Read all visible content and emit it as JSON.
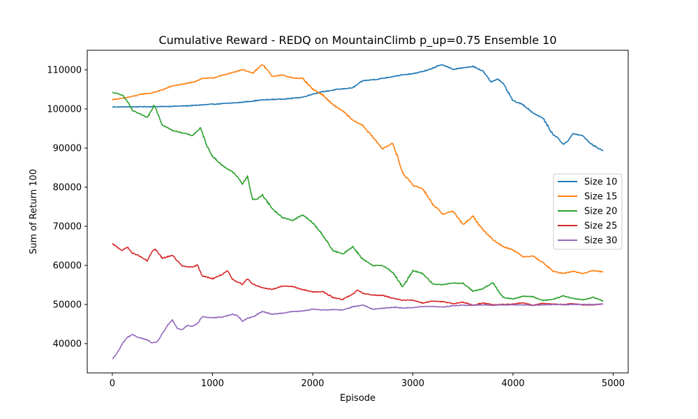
{
  "chart_data": {
    "type": "line",
    "title": "Cumulative Reward - REDQ on MountainClimb p_up=0.75 Ensemble 10",
    "xlabel": "Episode",
    "ylabel": "Sum of Return 100",
    "xlim": [
      -250,
      5150
    ],
    "ylim": [
      32500,
      115000
    ],
    "xticks": [
      0,
      1000,
      2000,
      3000,
      4000,
      5000
    ],
    "yticks": [
      40000,
      50000,
      60000,
      70000,
      80000,
      90000,
      100000,
      110000
    ],
    "legend_position": "center-right",
    "grid": false,
    "series": [
      {
        "name": "Size 10",
        "color": "#1f77b4",
        "x": [
          0,
          250,
          500,
          750,
          1000,
          1250,
          1500,
          1750,
          1900,
          2000,
          2100,
          2250,
          2400,
          2500,
          2650,
          2800,
          2900,
          3000,
          3150,
          3250,
          3300,
          3400,
          3500,
          3600,
          3700,
          3780,
          3850,
          3900,
          4000,
          4100,
          4200,
          4300,
          4400,
          4450,
          4500,
          4550,
          4600,
          4700,
          4750,
          4800,
          4900
        ],
        "values": [
          100500,
          100550,
          100600,
          100800,
          101200,
          101600,
          102300,
          102600,
          103000,
          103800,
          104400,
          105000,
          105400,
          107200,
          107600,
          108300,
          108700,
          109000,
          109900,
          111000,
          111300,
          110100,
          110500,
          110900,
          109700,
          106900,
          107700,
          106500,
          102100,
          101100,
          99000,
          97600,
          93400,
          92600,
          90900,
          91900,
          93700,
          93100,
          91700,
          90700,
          89300
        ]
      },
      {
        "name": "Size 15",
        "color": "#ff7f0e",
        "x": [
          0,
          100,
          200,
          300,
          400,
          500,
          600,
          700,
          800,
          900,
          1000,
          1100,
          1200,
          1300,
          1400,
          1500,
          1600,
          1700,
          1800,
          1900,
          2000,
          2100,
          2200,
          2300,
          2400,
          2500,
          2600,
          2700,
          2800,
          2900,
          3000,
          3100,
          3200,
          3300,
          3400,
          3500,
          3600,
          3700,
          3800,
          3900,
          4000,
          4100,
          4200,
          4300,
          4400,
          4500,
          4600,
          4700,
          4800,
          4900
        ],
        "values": [
          102400,
          102700,
          103200,
          103800,
          104100,
          104900,
          105900,
          106300,
          106800,
          107800,
          107900,
          108600,
          109300,
          110100,
          109100,
          111400,
          108300,
          108700,
          107900,
          107800,
          105100,
          103600,
          101100,
          99500,
          97100,
          95800,
          92800,
          89800,
          91300,
          83600,
          80500,
          79600,
          75600,
          73100,
          73900,
          70400,
          72500,
          69100,
          66600,
          64800,
          64000,
          62200,
          62400,
          60700,
          58500,
          57900,
          58500,
          57900,
          58700,
          58300
        ]
      },
      {
        "name": "Size 20",
        "color": "#2ca02c",
        "x": [
          0,
          100,
          150,
          200,
          250,
          300,
          350,
          420,
          500,
          600,
          700,
          800,
          880,
          950,
          1000,
          1100,
          1200,
          1250,
          1300,
          1350,
          1400,
          1450,
          1500,
          1600,
          1700,
          1800,
          1900,
          2000,
          2100,
          2200,
          2300,
          2400,
          2500,
          2600,
          2700,
          2800,
          2900,
          3000,
          3100,
          3200,
          3300,
          3400,
          3500,
          3600,
          3700,
          3800,
          3900,
          4000,
          4100,
          4200,
          4300,
          4400,
          4500,
          4600,
          4700,
          4800,
          4900
        ],
        "values": [
          104200,
          103600,
          101900,
          99600,
          99000,
          98400,
          97800,
          101100,
          95900,
          94500,
          93900,
          93200,
          95100,
          90300,
          87900,
          85500,
          83900,
          82600,
          80800,
          82800,
          76800,
          77000,
          78000,
          74400,
          72200,
          71500,
          72900,
          70900,
          67800,
          63800,
          62900,
          64800,
          61600,
          59900,
          60000,
          58200,
          54400,
          58700,
          57900,
          55200,
          55100,
          55500,
          55400,
          53400,
          54000,
          55600,
          51800,
          51400,
          52100,
          52000,
          51000,
          51300,
          52200,
          51500,
          51200,
          51800,
          50900
        ]
      },
      {
        "name": "Size 25",
        "color": "#d62728",
        "x": [
          0,
          100,
          150,
          200,
          250,
          300,
          350,
          400,
          430,
          500,
          600,
          650,
          700,
          800,
          850,
          900,
          1000,
          1100,
          1150,
          1200,
          1300,
          1350,
          1400,
          1500,
          1600,
          1700,
          1800,
          1900,
          2000,
          2100,
          2200,
          2300,
          2400,
          2450,
          2500,
          2600,
          2700,
          2800,
          2900,
          3000,
          3100,
          3200,
          3300,
          3400,
          3500,
          3600,
          3700,
          3800,
          3900,
          4000,
          4100,
          4200,
          4300,
          4400,
          4500,
          4600,
          4700,
          4800,
          4900
        ],
        "values": [
          65500,
          63800,
          64700,
          63100,
          62700,
          61900,
          61100,
          63700,
          64100,
          61800,
          62600,
          61100,
          59800,
          59500,
          60100,
          57300,
          56600,
          57700,
          58600,
          56400,
          55200,
          56600,
          55300,
          54200,
          53900,
          54700,
          54600,
          53800,
          53200,
          53300,
          51800,
          51300,
          52600,
          53700,
          52900,
          52400,
          52300,
          51600,
          51100,
          51100,
          50400,
          50900,
          50700,
          50200,
          50600,
          49800,
          50400,
          49900,
          50000,
          50100,
          50400,
          49800,
          50300,
          50100,
          50000,
          50200,
          49900,
          49900,
          50100
        ]
      },
      {
        "name": "Size 30",
        "color": "#9467bd",
        "x": [
          0,
          50,
          100,
          150,
          200,
          250,
          300,
          350,
          400,
          450,
          500,
          550,
          600,
          650,
          700,
          750,
          800,
          850,
          900,
          950,
          1000,
          1100,
          1200,
          1250,
          1300,
          1350,
          1400,
          1500,
          1600,
          1700,
          1800,
          1900,
          2000,
          2100,
          2200,
          2300,
          2400,
          2500,
          2600,
          2700,
          2800,
          2900,
          3000,
          3100,
          3200,
          3300,
          3400,
          3500,
          3600,
          3700,
          3800,
          3900,
          4000,
          4100,
          4200,
          4300,
          4400,
          4500,
          4600,
          4700,
          4800,
          4900
        ],
        "values": [
          36000,
          37600,
          40000,
          41600,
          42300,
          41700,
          41300,
          40900,
          40100,
          40500,
          42500,
          44600,
          46000,
          43800,
          43600,
          44700,
          44400,
          45100,
          46900,
          46700,
          46600,
          46800,
          47500,
          47200,
          45700,
          46500,
          46800,
          48200,
          47500,
          47800,
          48200,
          48300,
          48800,
          48600,
          48700,
          48600,
          49400,
          49900,
          48800,
          49000,
          49300,
          49100,
          49200,
          49500,
          49500,
          49300,
          49700,
          49800,
          49800,
          49900,
          49800,
          49900,
          49900,
          49900,
          49800,
          49900,
          50000,
          49900,
          50000,
          50000,
          50000,
          50100
        ]
      }
    ]
  }
}
